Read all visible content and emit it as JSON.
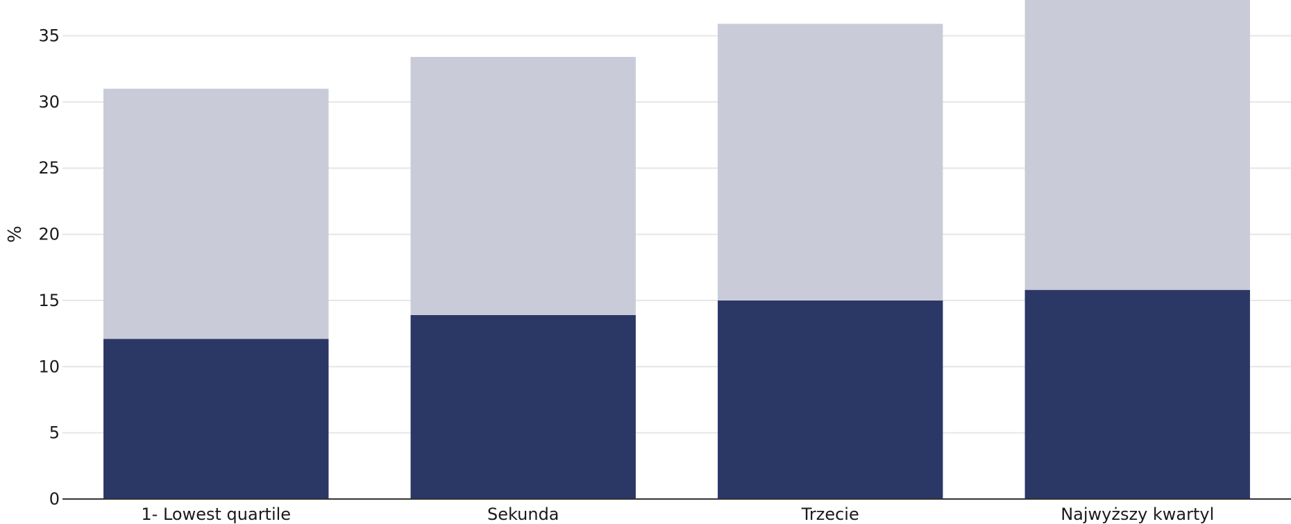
{
  "chart_data": {
    "type": "bar",
    "stacked": true,
    "categories": [
      "1- Lowest quartile",
      "Sekunda",
      "Trzecie",
      "Najwyższy kwartyl"
    ],
    "series": [
      {
        "values": [
          12.1,
          13.9,
          15.0,
          15.8
        ],
        "color": "#2b3765"
      },
      {
        "values": [
          18.9,
          19.5,
          20.9,
          21.9
        ],
        "color": "#c9cbd8"
      }
    ],
    "title": "",
    "xlabel": "",
    "ylabel": "%",
    "ylim": [
      0,
      37.7
    ],
    "yticks": [
      0,
      5,
      10,
      15,
      20,
      25,
      30,
      35
    ],
    "grid": true,
    "grid_color": "#e6e6e6",
    "axis_color": "#333333"
  }
}
